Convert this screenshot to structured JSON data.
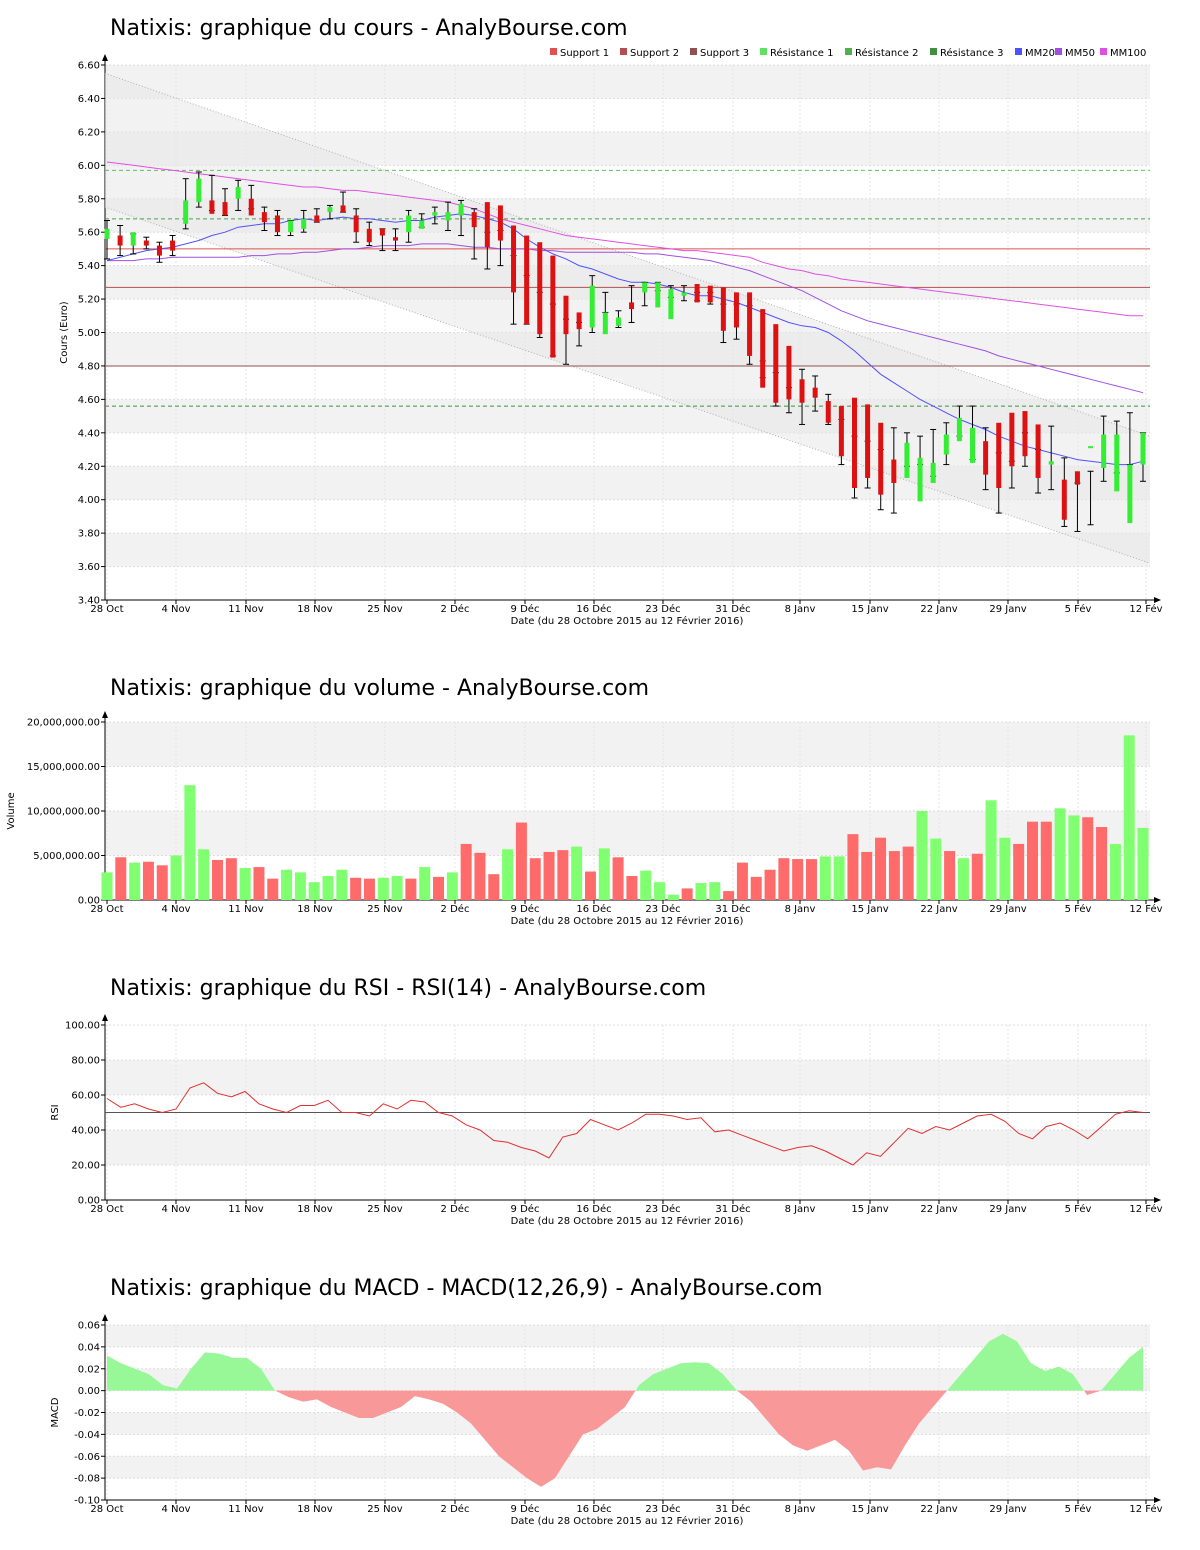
{
  "chart_data": [
    {
      "id": "price",
      "type": "candlestick",
      "title": "Natixis: graphique du cours - AnalyBourse.com",
      "ylabel": "Cours (Euro)",
      "xlabel": "Date (du 28 Octobre 2015 au 12 Février 2016)",
      "ylim": [
        3.4,
        6.6
      ],
      "yticks": [
        "3.40",
        "3.60",
        "3.80",
        "4.00",
        "4.20",
        "4.40",
        "4.60",
        "4.80",
        "5.00",
        "5.20",
        "5.40",
        "5.60",
        "5.80",
        "6.00",
        "6.20",
        "6.40",
        "6.60"
      ],
      "xticks": [
        "28 Oct",
        "4 Nov",
        "11 Nov",
        "18 Nov",
        "25 Nov",
        "2 Déc",
        "9 Déc",
        "16 Déc",
        "23 Déc",
        "31 Déc",
        "8 Janv",
        "15 Janv",
        "22 Janv",
        "29 Janv",
        "5 Fév",
        "12 Fév"
      ],
      "legend": [
        {
          "name": "Support 1",
          "color": "#e05050"
        },
        {
          "name": "Support 2",
          "color": "#b05050"
        },
        {
          "name": "Support 3",
          "color": "#905050"
        },
        {
          "name": "Résistance 1",
          "color": "#60e060"
        },
        {
          "name": "Résistance 2",
          "color": "#50b050"
        },
        {
          "name": "Résistance 3",
          "color": "#409040"
        },
        {
          "name": "MM20",
          "color": "#5050ff"
        },
        {
          "name": "MM50",
          "color": "#a050e0"
        },
        {
          "name": "MM100",
          "color": "#e050e0"
        }
      ],
      "legend_position": "top-right",
      "levels": {
        "supports": [
          5.5,
          5.27,
          4.8
        ],
        "resistances": [
          5.97,
          5.68,
          4.56
        ]
      },
      "channel": {
        "upper": [
          6.55,
          4.38
        ],
        "lower": [
          5.75,
          3.62
        ]
      },
      "candles": {
        "open": [
          5.56,
          5.58,
          5.52,
          5.55,
          5.52,
          5.55,
          5.65,
          5.78,
          5.79,
          5.78,
          5.8,
          5.8,
          5.72,
          5.7,
          5.6,
          5.62,
          5.7,
          5.72,
          5.76,
          5.7,
          5.62,
          5.62,
          5.57,
          5.6,
          5.62,
          5.7,
          5.67,
          5.7,
          5.72,
          5.78,
          5.76,
          5.64,
          5.58,
          5.54,
          5.46,
          5.22,
          5.12,
          5.03,
          4.99,
          5.04,
          5.18,
          5.24,
          5.15,
          5.08,
          5.22,
          5.29,
          5.28,
          5.27,
          5.24,
          5.24,
          5.14,
          5.05,
          4.92,
          4.72,
          4.67,
          4.59,
          4.56,
          4.61,
          4.57,
          4.46,
          4.24,
          4.13,
          3.99,
          4.1,
          4.27,
          4.35,
          4.22,
          4.35,
          4.46,
          4.52,
          4.53,
          4.45,
          4.21,
          4.12,
          4.17,
          4.31,
          4.19,
          4.05,
          3.86,
          4.21
        ],
        "high": [
          5.67,
          5.64,
          5.59,
          5.57,
          5.54,
          5.58,
          5.92,
          5.96,
          5.94,
          5.86,
          5.91,
          5.88,
          5.75,
          5.73,
          5.67,
          5.73,
          5.74,
          5.76,
          5.84,
          5.74,
          5.66,
          5.62,
          5.62,
          5.73,
          5.71,
          5.75,
          5.78,
          5.79,
          5.74,
          5.6,
          5.61,
          5.46,
          5.34,
          5.24,
          5.17,
          5.08,
          5.06,
          5.34,
          5.24,
          5.13,
          5.28,
          5.3,
          5.3,
          5.28,
          5.28,
          5.24,
          5.24,
          5.17,
          5.17,
          5.16,
          4.83,
          4.76,
          4.67,
          4.78,
          4.74,
          4.63,
          4.48,
          4.38,
          4.35,
          4.3,
          4.43,
          4.4,
          4.38,
          4.42,
          4.46,
          4.56,
          4.56,
          4.43,
          4.28,
          4.23,
          4.4,
          4.3,
          4.44,
          4.25,
          4.1,
          4.17,
          4.5,
          4.47,
          4.52,
          4.4
        ],
        "low": [
          5.44,
          5.46,
          5.47,
          5.5,
          5.42,
          5.46,
          5.62,
          5.75,
          5.73,
          5.7,
          5.73,
          5.74,
          5.61,
          5.58,
          5.58,
          5.6,
          5.66,
          5.68,
          5.72,
          5.54,
          5.52,
          5.49,
          5.49,
          5.54,
          5.63,
          5.65,
          5.61,
          5.58,
          5.44,
          5.38,
          5.4,
          5.05,
          5.05,
          4.97,
          4.86,
          4.81,
          4.92,
          5.0,
          5.12,
          5.03,
          5.06,
          5.16,
          5.25,
          5.21,
          5.19,
          5.19,
          5.17,
          4.94,
          4.96,
          4.81,
          4.73,
          4.56,
          4.52,
          4.45,
          4.53,
          4.45,
          4.21,
          4.01,
          4.07,
          3.94,
          3.92,
          4.2,
          4.21,
          4.14,
          4.21,
          4.38,
          4.24,
          4.06,
          3.92,
          4.07,
          4.2,
          4.04,
          4.06,
          3.84,
          3.81,
          3.85,
          4.11,
          4.16,
          4.21,
          4.11
        ],
        "close": [
          5.62,
          5.52,
          5.6,
          5.52,
          5.46,
          5.49,
          5.79,
          5.92,
          5.71,
          5.7,
          5.87,
          5.7,
          5.66,
          5.6,
          5.67,
          5.68,
          5.66,
          5.75,
          5.72,
          5.6,
          5.54,
          5.58,
          5.55,
          5.7,
          5.67,
          5.72,
          5.72,
          5.77,
          5.63,
          5.51,
          5.55,
          5.24,
          5.05,
          4.99,
          4.85,
          4.99,
          5.02,
          5.28,
          5.12,
          5.09,
          5.14,
          5.3,
          5.3,
          5.26,
          5.24,
          5.18,
          5.18,
          5.01,
          5.03,
          4.86,
          4.67,
          4.58,
          4.6,
          4.58,
          4.61,
          4.46,
          4.26,
          4.07,
          4.13,
          4.03,
          4.1,
          4.34,
          4.25,
          4.22,
          4.39,
          4.49,
          4.43,
          4.15,
          4.07,
          4.2,
          4.26,
          4.13,
          4.23,
          3.88,
          4.09,
          4.32,
          4.39,
          4.39,
          4.21,
          4.4
        ]
      },
      "ma20": [
        5.43,
        5.45,
        5.47,
        5.49,
        5.5,
        5.51,
        5.53,
        5.55,
        5.58,
        5.6,
        5.63,
        5.64,
        5.65,
        5.65,
        5.67,
        5.68,
        5.67,
        5.68,
        5.69,
        5.68,
        5.68,
        5.67,
        5.66,
        5.67,
        5.67,
        5.69,
        5.7,
        5.71,
        5.7,
        5.68,
        5.66,
        5.62,
        5.56,
        5.51,
        5.47,
        5.44,
        5.4,
        5.38,
        5.35,
        5.32,
        5.3,
        5.3,
        5.29,
        5.27,
        5.24,
        5.22,
        5.22,
        5.2,
        5.18,
        5.15,
        5.12,
        5.09,
        5.06,
        5.04,
        5.03,
        5.0,
        4.95,
        4.89,
        4.82,
        4.75,
        4.7,
        4.65,
        4.6,
        4.56,
        4.52,
        4.48,
        4.45,
        4.42,
        4.38,
        4.35,
        4.32,
        4.3,
        4.28,
        4.26,
        4.24,
        4.23,
        4.22,
        4.21,
        4.21,
        4.23
      ],
      "ma50": [
        5.43,
        5.43,
        5.43,
        5.44,
        5.44,
        5.45,
        5.45,
        5.45,
        5.45,
        5.45,
        5.45,
        5.46,
        5.46,
        5.47,
        5.47,
        5.48,
        5.48,
        5.49,
        5.5,
        5.5,
        5.51,
        5.52,
        5.52,
        5.52,
        5.53,
        5.53,
        5.53,
        5.52,
        5.51,
        5.51,
        5.5,
        5.5,
        5.5,
        5.49,
        5.49,
        5.48,
        5.48,
        5.48,
        5.48,
        5.48,
        5.48,
        5.47,
        5.47,
        5.46,
        5.45,
        5.44,
        5.43,
        5.41,
        5.39,
        5.37,
        5.34,
        5.31,
        5.28,
        5.25,
        5.21,
        5.17,
        5.13,
        5.1,
        5.07,
        5.05,
        5.03,
        5.01,
        4.99,
        4.97,
        4.95,
        4.93,
        4.91,
        4.89,
        4.86,
        4.84,
        4.82,
        4.8,
        4.78,
        4.76,
        4.74,
        4.72,
        4.7,
        4.68,
        4.66,
        4.64
      ],
      "ma100": [
        6.02,
        6.01,
        6.0,
        5.99,
        5.98,
        5.97,
        5.96,
        5.95,
        5.94,
        5.93,
        5.92,
        5.91,
        5.9,
        5.89,
        5.88,
        5.87,
        5.87,
        5.86,
        5.85,
        5.85,
        5.84,
        5.83,
        5.82,
        5.81,
        5.8,
        5.79,
        5.78,
        5.76,
        5.74,
        5.71,
        5.68,
        5.66,
        5.64,
        5.62,
        5.6,
        5.58,
        5.57,
        5.56,
        5.55,
        5.54,
        5.53,
        5.52,
        5.51,
        5.5,
        5.49,
        5.49,
        5.48,
        5.47,
        5.46,
        5.45,
        5.42,
        5.4,
        5.38,
        5.37,
        5.35,
        5.34,
        5.32,
        5.31,
        5.3,
        5.29,
        5.28,
        5.27,
        5.26,
        5.25,
        5.24,
        5.23,
        5.22,
        5.21,
        5.2,
        5.19,
        5.18,
        5.17,
        5.16,
        5.15,
        5.14,
        5.13,
        5.12,
        5.11,
        5.1,
        5.1
      ]
    },
    {
      "id": "volume",
      "type": "bar",
      "title": "Natixis: graphique du volume - AnalyBourse.com",
      "ylabel": "Volume",
      "xlabel": "Date (du 28 Octobre 2015 au 12 Février 2016)",
      "ylim": [
        0,
        20000000
      ],
      "yticks": [
        "0.00",
        "5,000,000.00",
        "10,000,000.00",
        "15,000,000.00",
        "20,000,000.00"
      ],
      "xticks": [
        "28 Oct",
        "4 Nov",
        "11 Nov",
        "18 Nov",
        "25 Nov",
        "2 Déc",
        "9 Déc",
        "16 Déc",
        "23 Déc",
        "31 Déc",
        "8 Janv",
        "15 Janv",
        "22 Janv",
        "29 Janv",
        "5 Fév",
        "12 Fév"
      ],
      "values": [
        3100000,
        4800000,
        4200000,
        4300000,
        3900000,
        5000000,
        12900000,
        5700000,
        4500000,
        4700000,
        3600000,
        3700000,
        2400000,
        3400000,
        3100000,
        2000000,
        2700000,
        3400000,
        2500000,
        2400000,
        2500000,
        2700000,
        2400000,
        3700000,
        2600000,
        3100000,
        6300000,
        5300000,
        2900000,
        5700000,
        8700000,
        4700000,
        5400000,
        5600000,
        6000000,
        3200000,
        5800000,
        4800000,
        2700000,
        3300000,
        2000000,
        600000,
        1300000,
        1900000,
        2000000,
        1000000,
        4200000,
        2600000,
        3400000,
        4700000,
        4600000,
        4600000,
        4900000,
        4900000,
        7400000,
        5400000,
        7000000,
        5500000,
        6000000,
        10000000,
        6900000,
        5500000,
        4700000,
        5200000,
        11200000,
        7000000,
        6300000,
        8800000,
        8800000,
        10300000,
        9500000,
        9300000,
        8200000,
        6300000,
        18500000,
        8100000
      ],
      "up": [
        true,
        false,
        true,
        false,
        false,
        true,
        true,
        true,
        false,
        false,
        true,
        false,
        false,
        true,
        true,
        true,
        true,
        true,
        false,
        false,
        true,
        true,
        false,
        true,
        false,
        true,
        false,
        false,
        false,
        true,
        false,
        false,
        false,
        false,
        true,
        false,
        true,
        false,
        false,
        true,
        true,
        true,
        false,
        true,
        true,
        false,
        false,
        false,
        false,
        false,
        false,
        false,
        true,
        true,
        false,
        false,
        false,
        false,
        false,
        true,
        true,
        false,
        true,
        false,
        true,
        true,
        false,
        false,
        false,
        true,
        true,
        false,
        false,
        true,
        true,
        true
      ],
      "colors": {
        "up": "#80ff70",
        "down": "#ff6b6b"
      }
    },
    {
      "id": "rsi",
      "type": "line",
      "title": "Natixis: graphique du RSI - RSI(14) - AnalyBourse.com",
      "ylabel": "RSI",
      "xlabel": "Date (du 28 Octobre 2015 au 12 Février 2016)",
      "ylim": [
        0,
        100
      ],
      "yticks": [
        "0.00",
        "20.00",
        "40.00",
        "60.00",
        "80.00",
        "100.00"
      ],
      "xticks": [
        "28 Oct",
        "4 Nov",
        "11 Nov",
        "18 Nov",
        "25 Nov",
        "2 Déc",
        "9 Déc",
        "16 Déc",
        "23 Déc",
        "31 Déc",
        "8 Janv",
        "15 Janv",
        "22 Janv",
        "29 Janv",
        "5 Fév",
        "12 Fév"
      ],
      "reference": 50,
      "values": [
        58,
        53,
        55,
        52,
        50,
        52,
        64,
        67,
        61,
        59,
        62,
        55,
        52,
        50,
        54,
        54,
        57,
        50,
        50,
        48,
        55,
        52,
        57,
        56,
        50,
        48,
        43,
        40,
        34,
        33,
        30,
        28,
        24,
        36,
        38,
        46,
        43,
        40,
        44,
        49,
        49,
        48,
        46,
        47,
        39,
        40,
        37,
        34,
        31,
        28,
        30,
        31,
        28,
        24,
        20,
        27,
        25,
        33,
        41,
        38,
        42,
        40,
        44,
        48,
        49,
        45,
        38,
        35,
        42,
        44,
        40,
        35,
        42,
        49,
        51,
        50
      ],
      "color": "#e03030"
    },
    {
      "id": "macd",
      "type": "area",
      "title": "Natixis: graphique du MACD - MACD(12,26,9) - AnalyBourse.com",
      "ylabel": "MACD",
      "xlabel": "Date (du 28 Octobre 2015 au 12 Février 2016)",
      "ylim": [
        -0.1,
        0.06
      ],
      "yticks": [
        "-0.10",
        "-0.08",
        "-0.06",
        "-0.04",
        "-0.02",
        "0.00",
        "0.02",
        "0.04",
        "0.06"
      ],
      "xticks": [
        "28 Oct",
        "4 Nov",
        "11 Nov",
        "18 Nov",
        "25 Nov",
        "2 Déc",
        "9 Déc",
        "16 Déc",
        "23 Déc",
        "31 Déc",
        "8 Janv",
        "15 Janv",
        "22 Janv",
        "29 Janv",
        "5 Fév",
        "12 Fév"
      ],
      "values": [
        0.032,
        0.025,
        0.02,
        0.015,
        0.005,
        0.002,
        0.02,
        0.035,
        0.034,
        0.03,
        0.03,
        0.02,
        0.0,
        -0.006,
        -0.01,
        -0.008,
        -0.015,
        -0.02,
        -0.025,
        -0.025,
        -0.02,
        -0.015,
        -0.005,
        -0.008,
        -0.012,
        -0.02,
        -0.03,
        -0.045,
        -0.06,
        -0.07,
        -0.08,
        -0.088,
        -0.08,
        -0.06,
        -0.04,
        -0.035,
        -0.025,
        -0.015,
        0.005,
        0.015,
        0.02,
        0.025,
        0.026,
        0.025,
        0.015,
        0.0,
        -0.01,
        -0.025,
        -0.04,
        -0.05,
        -0.055,
        -0.05,
        -0.045,
        -0.055,
        -0.073,
        -0.07,
        -0.072,
        -0.05,
        -0.03,
        -0.015,
        0.0,
        0.015,
        0.03,
        0.045,
        0.052,
        0.045,
        0.025,
        0.018,
        0.022,
        0.015,
        -0.004,
        0.0,
        0.015,
        0.03,
        0.04
      ],
      "colors": {
        "positive": "#98f898",
        "negative": "#f89898"
      }
    }
  ]
}
